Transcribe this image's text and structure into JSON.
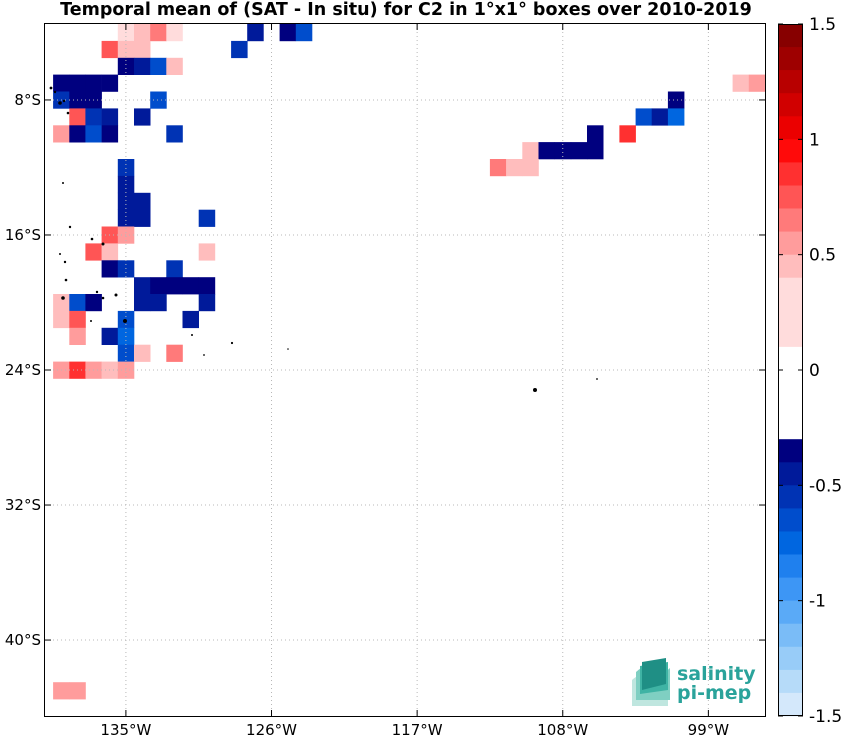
{
  "chart_data": {
    "type": "heatmap",
    "title": "Temporal mean of (SAT - In situ) for C2 in 1°x1° boxes over 2010-2019",
    "x_axis": {
      "range": [
        -140,
        -95.5
      ],
      "ticks": [
        {
          "value": -135,
          "label": "135°W"
        },
        {
          "value": -126,
          "label": "126°W"
        },
        {
          "value": -117,
          "label": "117°W"
        },
        {
          "value": -108,
          "label": "108°W"
        },
        {
          "value": -99,
          "label": "99°W"
        }
      ]
    },
    "y_axis": {
      "range": [
        -44.5,
        -3.5
      ],
      "ticks": [
        {
          "value": -8,
          "label": "8°S"
        },
        {
          "value": -16,
          "label": "16°S"
        },
        {
          "value": -24,
          "label": "24°S"
        },
        {
          "value": -32,
          "label": "32°S"
        },
        {
          "value": -40,
          "label": "40°S"
        }
      ]
    },
    "grid": true,
    "colorbar": {
      "range": [
        -1.5,
        1.5
      ],
      "step": 0.1,
      "ticks": [
        {
          "value": 1.5,
          "label": "1.5"
        },
        {
          "value": 1,
          "label": "1"
        },
        {
          "value": 0.5,
          "label": "0.5"
        },
        {
          "value": 0,
          "label": "0"
        },
        {
          "value": -0.5,
          "label": "-0.5"
        },
        {
          "value": -1,
          "label": "-1"
        },
        {
          "value": -1.5,
          "label": "-1.5"
        }
      ]
    },
    "cells": [
      {
        "lon": -135,
        "lat": -4,
        "value": 0.1
      },
      {
        "lon": -134,
        "lat": -4,
        "value": 0.15
      },
      {
        "lon": -133,
        "lat": -4,
        "value": 0.35
      },
      {
        "lon": -132,
        "lat": -4,
        "value": 0.1
      },
      {
        "lon": -127,
        "lat": -4,
        "value": -0.15
      },
      {
        "lon": -125,
        "lat": -4,
        "value": -0.1
      },
      {
        "lon": -124,
        "lat": -4,
        "value": -0.35
      },
      {
        "lon": -136,
        "lat": -5,
        "value": 0.45
      },
      {
        "lon": -135,
        "lat": -5,
        "value": 0.15
      },
      {
        "lon": -134,
        "lat": -5,
        "value": 0.15
      },
      {
        "lon": -128,
        "lat": -5,
        "value": -0.25
      },
      {
        "lon": -135,
        "lat": -6,
        "value": -0.1
      },
      {
        "lon": -134,
        "lat": -6,
        "value": -0.15
      },
      {
        "lon": -133,
        "lat": -6,
        "value": -0.35
      },
      {
        "lon": -132,
        "lat": -6,
        "value": 0.15
      },
      {
        "lon": -139,
        "lat": -7,
        "value": -0.1
      },
      {
        "lon": -138,
        "lat": -7,
        "value": -0.1
      },
      {
        "lon": -137,
        "lat": -7,
        "value": -0.1
      },
      {
        "lon": -136,
        "lat": -7,
        "value": -0.1
      },
      {
        "lon": -97,
        "lat": -7,
        "value": 0.15
      },
      {
        "lon": -96,
        "lat": -7,
        "value": 0.25
      },
      {
        "lon": -139,
        "lat": -8,
        "value": -0.25
      },
      {
        "lon": -138,
        "lat": -8,
        "value": -0.1
      },
      {
        "lon": -137,
        "lat": -8,
        "value": -0.1
      },
      {
        "lon": -133,
        "lat": -8,
        "value": -0.35
      },
      {
        "lon": -101,
        "lat": -8,
        "value": -0.1
      },
      {
        "lon": -138,
        "lat": -9,
        "value": 0.45
      },
      {
        "lon": -137,
        "lat": -9,
        "value": -0.25
      },
      {
        "lon": -136,
        "lat": -9,
        "value": -0.15
      },
      {
        "lon": -134,
        "lat": -9,
        "value": -0.15
      },
      {
        "lon": -103,
        "lat": -9,
        "value": -0.35
      },
      {
        "lon": -102,
        "lat": -9,
        "value": -0.15
      },
      {
        "lon": -101,
        "lat": -9,
        "value": -0.45
      },
      {
        "lon": -139,
        "lat": -10,
        "value": 0.25
      },
      {
        "lon": -138,
        "lat": -10,
        "value": -0.1
      },
      {
        "lon": -137,
        "lat": -10,
        "value": -0.35
      },
      {
        "lon": -136,
        "lat": -10,
        "value": -0.1
      },
      {
        "lon": -132,
        "lat": -10,
        "value": -0.25
      },
      {
        "lon": -104,
        "lat": -10,
        "value": 0.6
      },
      {
        "lon": -106,
        "lat": -10,
        "value": -0.1
      },
      {
        "lon": -110,
        "lat": -11,
        "value": 0.15
      },
      {
        "lon": -109,
        "lat": -11,
        "value": -0.1
      },
      {
        "lon": -108,
        "lat": -11,
        "value": -0.1
      },
      {
        "lon": -107,
        "lat": -11,
        "value": -0.1
      },
      {
        "lon": -106,
        "lat": -11,
        "value": -0.1
      },
      {
        "lon": -112,
        "lat": -12,
        "value": 0.35
      },
      {
        "lon": -111,
        "lat": -12,
        "value": 0.15
      },
      {
        "lon": -110,
        "lat": -12,
        "value": 0.15
      },
      {
        "lon": -135,
        "lat": -12,
        "value": -0.25
      },
      {
        "lon": -135,
        "lat": -13,
        "value": -0.2
      },
      {
        "lon": -135,
        "lat": -14,
        "value": -0.2
      },
      {
        "lon": -134,
        "lat": -14,
        "value": -0.15
      },
      {
        "lon": -135,
        "lat": -15,
        "value": -0.2
      },
      {
        "lon": -134,
        "lat": -15,
        "value": -0.15
      },
      {
        "lon": -130,
        "lat": -15,
        "value": -0.25
      },
      {
        "lon": -136,
        "lat": -16,
        "value": 0.45
      },
      {
        "lon": -135,
        "lat": -16,
        "value": 0.25
      },
      {
        "lon": -137,
        "lat": -17,
        "value": 0.45
      },
      {
        "lon": -136,
        "lat": -17,
        "value": 0.15
      },
      {
        "lon": -130,
        "lat": -17,
        "value": 0.15
      },
      {
        "lon": -136,
        "lat": -18,
        "value": -0.1
      },
      {
        "lon": -135,
        "lat": -18,
        "value": -0.3
      },
      {
        "lon": -132,
        "lat": -18,
        "value": -0.25
      },
      {
        "lon": -134,
        "lat": -19,
        "value": -0.2
      },
      {
        "lon": -133,
        "lat": -19,
        "value": -0.1
      },
      {
        "lon": -132,
        "lat": -19,
        "value": -0.1
      },
      {
        "lon": -131,
        "lat": -19,
        "value": -0.1
      },
      {
        "lon": -130,
        "lat": -19,
        "value": -0.1
      },
      {
        "lon": -139,
        "lat": -20,
        "value": 0.15
      },
      {
        "lon": -138,
        "lat": -20,
        "value": -0.4
      },
      {
        "lon": -137,
        "lat": -20,
        "value": -0.1
      },
      {
        "lon": -134,
        "lat": -20,
        "value": -0.2
      },
      {
        "lon": -133,
        "lat": -20,
        "value": -0.15
      },
      {
        "lon": -130,
        "lat": -20,
        "value": -0.15
      },
      {
        "lon": -139,
        "lat": -21,
        "value": 0.2
      },
      {
        "lon": -138,
        "lat": -21,
        "value": 0.5
      },
      {
        "lon": -135,
        "lat": -21,
        "value": -0.4
      },
      {
        "lon": -131,
        "lat": -21,
        "value": -0.15
      },
      {
        "lon": -138,
        "lat": -22,
        "value": 0.25
      },
      {
        "lon": -136,
        "lat": -22,
        "value": -0.2
      },
      {
        "lon": -135,
        "lat": -22,
        "value": -0.45
      },
      {
        "lon": -135,
        "lat": -23,
        "value": -0.35
      },
      {
        "lon": -134,
        "lat": -23,
        "value": 0.2
      },
      {
        "lon": -132,
        "lat": -23,
        "value": 0.35
      },
      {
        "lon": -139,
        "lat": -24,
        "value": 0.3
      },
      {
        "lon": -138,
        "lat": -24,
        "value": 0.55
      },
      {
        "lon": -137,
        "lat": -24,
        "value": 0.25
      },
      {
        "lon": -136,
        "lat": -24,
        "value": 0.2
      },
      {
        "lon": -135,
        "lat": -24,
        "value": 0.25
      },
      {
        "lon": -139,
        "lat": -43,
        "value": 0.25
      },
      {
        "lon": -138,
        "lat": -43,
        "value": 0.25
      }
    ]
  },
  "brand": {
    "line1": "salinity",
    "line2": "pi-mep"
  },
  "colors": {
    "cb_neg": [
      "#00007f",
      "#001a9a",
      "#0033b4",
      "#004dcc",
      "#0066e0",
      "#1f80ee",
      "#3d96f5",
      "#5aaaf7",
      "#7abcf7",
      "#98ccf8",
      "#b6dbf9",
      "#d4e8fb"
    ],
    "cb_pos": [
      "#ffdcdc",
      "#ffbdbd",
      "#ff9c9c",
      "#ff7a7a",
      "#ff5555",
      "#ff3030",
      "#ff0a0a",
      "#eb0000",
      "#d10000",
      "#b80000",
      "#9e0000",
      "#870000"
    ],
    "land": "#000000",
    "brand": "#2aa39b"
  }
}
